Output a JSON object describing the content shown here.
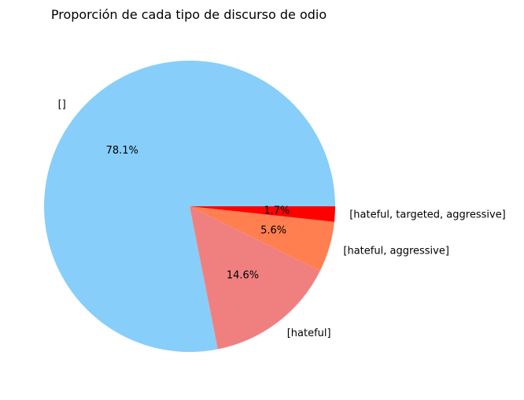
{
  "chart_data": {
    "type": "pie",
    "title": "Proporción de cada tipo de discurso de odio",
    "slices": [
      {
        "label": "[]",
        "value": 78.1,
        "pct_label": "78.1%",
        "color": "#87CEFA"
      },
      {
        "label": "[hateful]",
        "value": 14.6,
        "pct_label": "14.6%",
        "color": "#F08080"
      },
      {
        "label": "[hateful, aggressive]",
        "value": 5.6,
        "pct_label": "5.6%",
        "color": "#FF7F50"
      },
      {
        "label": "[hateful, targeted, aggressive]",
        "value": 1.7,
        "pct_label": "1.7%",
        "color": "#FF0000"
      }
    ],
    "start_angle_deg": 0,
    "direction": "counterclockwise",
    "legend": "none"
  }
}
